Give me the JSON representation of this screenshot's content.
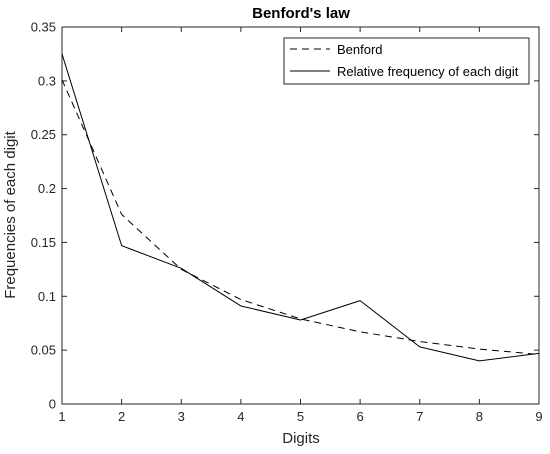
{
  "chart_data": {
    "type": "line",
    "title": "Benford's law",
    "xlabel": "Digits",
    "ylabel": "Frequencies of each digit",
    "x": [
      1,
      2,
      3,
      4,
      5,
      6,
      7,
      8,
      9
    ],
    "xlim": [
      1,
      9
    ],
    "ylim": [
      0,
      0.35
    ],
    "xticks": [
      "1",
      "2",
      "3",
      "4",
      "5",
      "6",
      "7",
      "8",
      "9"
    ],
    "yticks": [
      "0",
      "0.05",
      "0.1",
      "0.15",
      "0.2",
      "0.25",
      "0.3",
      "0.35"
    ],
    "grid": false,
    "legend_position": "top-right",
    "series": [
      {
        "name": "Benford",
        "style": "dashed",
        "color": "#000000",
        "values": [
          0.301,
          0.176,
          0.125,
          0.097,
          0.079,
          0.067,
          0.058,
          0.051,
          0.046
        ]
      },
      {
        "name": "Relative frequency of each digit",
        "style": "solid",
        "color": "#000000",
        "values": [
          0.325,
          0.147,
          0.126,
          0.091,
          0.078,
          0.096,
          0.053,
          0.04,
          0.047
        ]
      }
    ]
  }
}
